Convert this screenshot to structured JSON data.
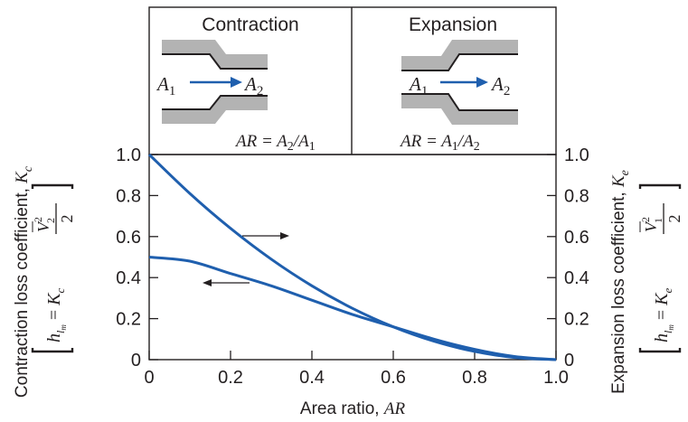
{
  "chart_data": {
    "type": "line",
    "x": [
      0,
      0.1,
      0.2,
      0.3,
      0.4,
      0.5,
      0.6,
      0.7,
      0.8,
      0.9,
      1.0
    ],
    "series": [
      {
        "values": [
          1.0,
          0.81,
          0.64,
          0.49,
          0.36,
          0.25,
          0.16,
          0.09,
          0.04,
          0.01,
          0.0
        ],
        "arrow": "right",
        "color": "#1f5fae"
      },
      {
        "values": [
          0.5,
          0.48,
          0.42,
          0.36,
          0.29,
          0.22,
          0.16,
          0.1,
          0.05,
          0.015,
          0.0
        ],
        "arrow": "left",
        "color": "#1f5fae"
      }
    ],
    "xlim": [
      0,
      1.0
    ],
    "ylim": [
      0,
      1.0
    ],
    "xticks": [
      "0",
      "0.2",
      "0.4",
      "0.6",
      "0.8",
      "1.0"
    ],
    "yticks": [
      "0",
      "0.2",
      "0.4",
      "0.6",
      "0.8",
      "1.0"
    ],
    "xlabel": {
      "text": "Area ratio, ",
      "var": "AR"
    },
    "ylabel_left": {
      "text": "Contraction loss coefficient, ",
      "var": "K",
      "sub": "c"
    },
    "ylabel_right": {
      "text": "Expansion loss coefficient, ",
      "var": "K",
      "sub": "e"
    },
    "grid": false
  },
  "panels": {
    "contraction": {
      "title": "Contraction",
      "from": "A",
      "from_sub": "1",
      "to": "A",
      "to_sub": "2",
      "ratio": "AR = A",
      "ratio_sub1": "2",
      "ratio_mid": "/A",
      "ratio_sub2": "1"
    },
    "expansion": {
      "title": "Expansion",
      "from": "A",
      "from_sub": "1",
      "to": "A",
      "to_sub": "2",
      "ratio": "AR = A",
      "ratio_sub1": "1",
      "ratio_mid": "/A",
      "ratio_sub2": "2"
    }
  },
  "formulas": {
    "left": {
      "h": "h",
      "sub": "l",
      "subsub": "m",
      "eq": " = ",
      "K": "K",
      "Ksub": "c",
      "V": "V",
      "Vsub": "2",
      "exp": "2",
      "den": "2"
    },
    "right": {
      "h": "h",
      "sub": "l",
      "subsub": "m",
      "eq": " = ",
      "K": "K",
      "Ksub": "e",
      "V": "V",
      "Vsub": "1",
      "exp": "2",
      "den": "2"
    }
  },
  "colors": {
    "curve": "#1f5fae",
    "pipe": "#b3b3b3",
    "ink": "#231f20",
    "arrow_flow": "#1f5fae"
  }
}
